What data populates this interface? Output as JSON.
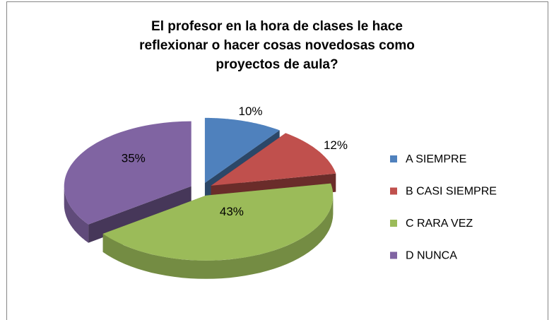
{
  "chart_data": {
    "type": "pie3d",
    "title": [
      "El profesor en la hora de clases le hace",
      "reflexionar o hacer cosas novedosas como",
      "proyectos de aula?"
    ],
    "categories": [
      "A SIEMPRE",
      "B CASI SIEMPRE",
      "C RARA VEZ",
      "D NUNCA"
    ],
    "values": [
      10,
      12,
      43,
      35
    ],
    "value_labels": [
      "10%",
      "12%",
      "43%",
      "35%"
    ],
    "colors": [
      "#4f81bd",
      "#c0504d",
      "#9bbb59",
      "#8064a2"
    ],
    "legend": "right"
  }
}
